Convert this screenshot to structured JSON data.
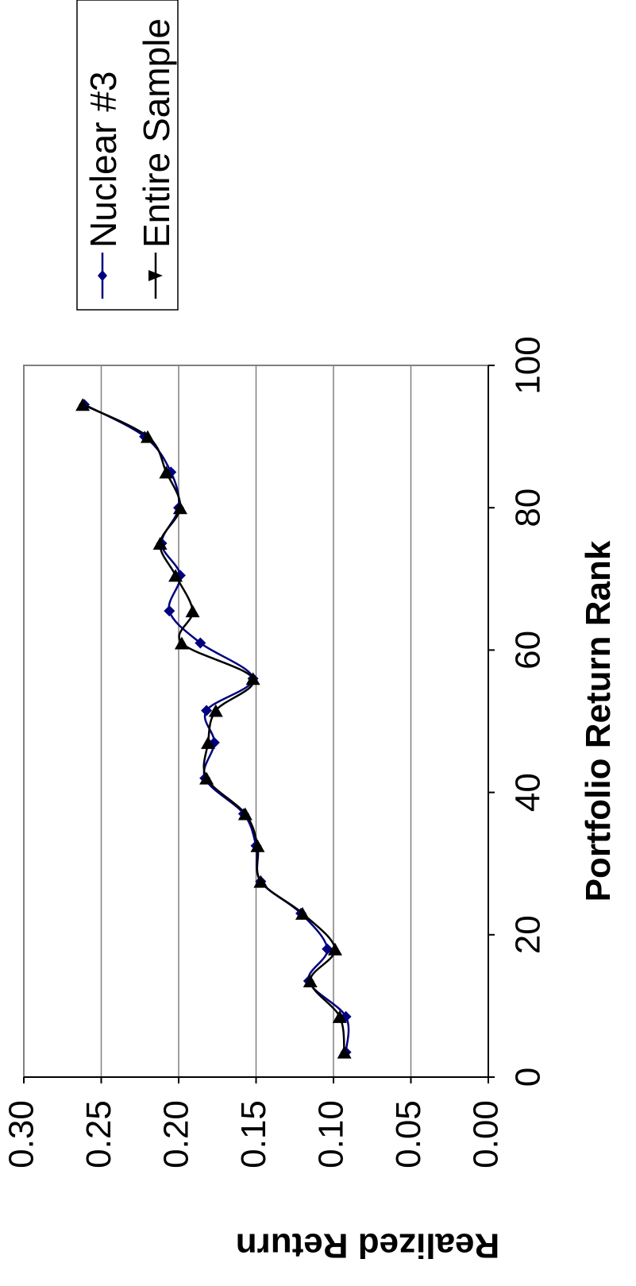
{
  "chart_data": {
    "type": "line",
    "xlabel": "Portfolio Return Rank",
    "ylabel": "Realized Return",
    "xlim": [
      0,
      100
    ],
    "ylim": [
      0.0,
      0.3
    ],
    "x_ticks": [
      "0",
      "20",
      "40",
      "60",
      "80",
      "100"
    ],
    "y_ticks": [
      "0.00",
      "0.05",
      "0.10",
      "0.15",
      "0.20",
      "0.25",
      "0.30"
    ],
    "grid": "horizontal",
    "legend_position": "right",
    "orientation": "rotated 90° counter-clockwise",
    "series": [
      {
        "name": "Nuclear #3",
        "color": "#000080",
        "marker": "diamond",
        "x": [
          3.5,
          8.5,
          13.5,
          18,
          23,
          27.5,
          32.5,
          37,
          42,
          47,
          51.5,
          56,
          61,
          65.5,
          70.5,
          75,
          80,
          85,
          90,
          94.5
        ],
        "y": [
          0.092,
          0.092,
          0.116,
          0.104,
          0.121,
          0.147,
          0.15,
          0.158,
          0.183,
          0.177,
          0.182,
          0.152,
          0.186,
          0.206,
          0.199,
          0.211,
          0.2,
          0.205,
          0.222,
          0.261
        ]
      },
      {
        "name": "Entire Sample",
        "color": "#000000",
        "marker": "triangle",
        "x": [
          3.5,
          8.5,
          13.5,
          18,
          23,
          27.5,
          32.5,
          37,
          42,
          47,
          51.5,
          56,
          61,
          65.5,
          70.5,
          75,
          80,
          85,
          90,
          94.5
        ],
        "y": [
          0.093,
          0.096,
          0.115,
          0.099,
          0.12,
          0.147,
          0.149,
          0.157,
          0.182,
          0.181,
          0.176,
          0.152,
          0.198,
          0.191,
          0.202,
          0.212,
          0.199,
          0.208,
          0.22,
          0.262
        ]
      }
    ]
  }
}
